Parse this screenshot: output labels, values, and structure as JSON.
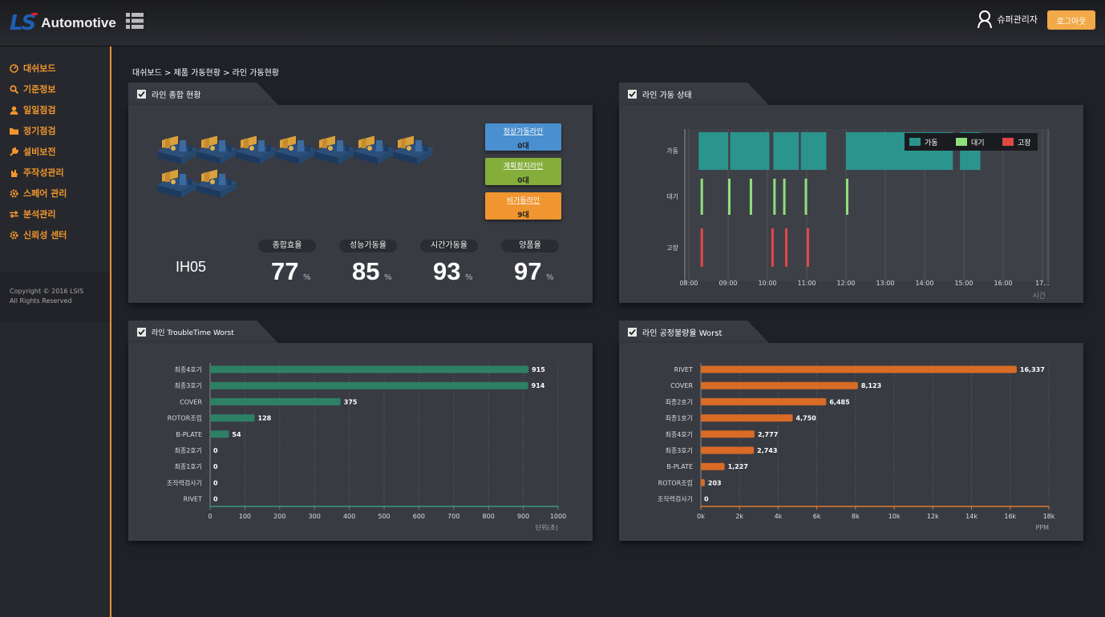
{
  "header": {
    "logo_mark": "LS",
    "logo_text": "Automotive",
    "user_name": "슈퍼관리자",
    "logout_label": "로그아웃"
  },
  "sidebar": {
    "items": [
      {
        "label": "대쉬보드",
        "icon": "dashboard-icon"
      },
      {
        "label": "기준정보",
        "icon": "search-icon"
      },
      {
        "label": "일일점검",
        "icon": "user-icon"
      },
      {
        "label": "정기점검",
        "icon": "folder-icon"
      },
      {
        "label": "설비보전",
        "icon": "wrench-icon"
      },
      {
        "label": "주작성관리",
        "icon": "hand-icon"
      },
      {
        "label": "스페어 관리",
        "icon": "gear-icon"
      },
      {
        "label": "분석관리",
        "icon": "exchange-icon"
      },
      {
        "label": "신뢰성 센터",
        "icon": "gear-icon"
      }
    ],
    "copyright_line1": "Copyright © 2016 LSIS",
    "copyright_line2": "All Rights Reserved"
  },
  "breadcrumb": "대쉬보드 > 제품 가동현황 > 라인 가동현황",
  "panel_summary": {
    "title": "라인 종합 현황",
    "machine_count": 9,
    "status": [
      {
        "label": "정상가동라인",
        "value": "0대",
        "color": "#4a8fd0"
      },
      {
        "label": "계획정지라인",
        "value": "0대",
        "color": "#84ad3a"
      },
      {
        "label": "비가동라인",
        "value": "9대",
        "color": "#f0952f"
      }
    ],
    "line_name": "IH05",
    "kpis": [
      {
        "label": "종합효율",
        "value": "77",
        "unit": "%"
      },
      {
        "label": "성능가동율",
        "value": "85",
        "unit": "%"
      },
      {
        "label": "시간가동율",
        "value": "93",
        "unit": "%"
      },
      {
        "label": "양품율",
        "value": "97",
        "unit": "%"
      }
    ]
  },
  "panel_status": {
    "title": "라인 가동 상태",
    "legend": [
      {
        "label": "가동",
        "color": "#2b948c"
      },
      {
        "label": "대기",
        "color": "#8ee07a"
      },
      {
        "label": "고장",
        "color": "#e04848"
      }
    ],
    "categories": [
      "가동",
      "대기",
      "고장"
    ],
    "x_ticks": [
      "08:00",
      "09:00",
      "10:00",
      "11:00",
      "12:00",
      "13:00",
      "14:00",
      "15:00",
      "16:00",
      "17..."
    ],
    "x_label": "시간"
  },
  "chart_data": [
    {
      "type": "bar",
      "title": "라인 TroubleTime Worst",
      "orientation": "horizontal",
      "categories": [
        "최종4호기",
        "최종3호기",
        "COVER",
        "ROTOR조립",
        "B-PLATE",
        "최종2호기",
        "최종1호기",
        "조작력검사기",
        "RIVET"
      ],
      "values": [
        915,
        914,
        375,
        128,
        54,
        0,
        0,
        0,
        0
      ],
      "value_labels": [
        "915",
        "914",
        "375",
        "128",
        "54",
        "0",
        "0",
        "0",
        "0"
      ],
      "xlim": [
        0,
        1000
      ],
      "x_ticks": [
        "0",
        "100",
        "200",
        "300",
        "400",
        "500",
        "600",
        "700",
        "800",
        "900",
        "1000"
      ],
      "xlabel": "단위(초)",
      "color": "#2e8064"
    },
    {
      "type": "bar",
      "title": "라인 공정불량율 Worst",
      "orientation": "horizontal",
      "categories": [
        "RIVET",
        "COVER",
        "최종2호기",
        "최종1호기",
        "최종4호기",
        "최종3호기",
        "B-PLATE",
        "ROTOR조립",
        "조작력검사기"
      ],
      "values": [
        16337,
        8123,
        6485,
        4750,
        2777,
        2743,
        1227,
        203,
        0
      ],
      "value_labels": [
        "16,337",
        "8,123",
        "6,485",
        "4,750",
        "2,777",
        "2,743",
        "1,227",
        "203",
        "0"
      ],
      "xlim": [
        0,
        18000
      ],
      "x_ticks": [
        "0k",
        "2k",
        "4k",
        "6k",
        "8k",
        "10k",
        "12k",
        "14k",
        "16k",
        "18k"
      ],
      "xlabel": "PPM",
      "color": "#d96b25"
    }
  ]
}
